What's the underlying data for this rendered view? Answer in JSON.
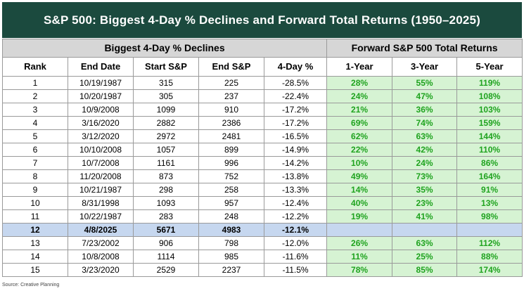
{
  "title": "S&P 500: Biggest 4-Day % Declines and Forward Total Returns (1950–2025)",
  "group_headers": {
    "declines": "Biggest 4-Day % Declines",
    "forward": "Forward S&P 500 Total Returns"
  },
  "columns": [
    "Rank",
    "End Date",
    "Start S&P",
    "End S&P",
    "4-Day %",
    "1-Year",
    "3-Year",
    "5-Year"
  ],
  "rows": [
    {
      "rank": "1",
      "end_date": "10/19/1987",
      "start": "315",
      "end": "225",
      "pct": "-28.5%",
      "y1": "28%",
      "y3": "55%",
      "y5": "119%"
    },
    {
      "rank": "2",
      "end_date": "10/20/1987",
      "start": "305",
      "end": "237",
      "pct": "-22.4%",
      "y1": "24%",
      "y3": "47%",
      "y5": "108%"
    },
    {
      "rank": "3",
      "end_date": "10/9/2008",
      "start": "1099",
      "end": "910",
      "pct": "-17.2%",
      "y1": "21%",
      "y3": "36%",
      "y5": "103%"
    },
    {
      "rank": "4",
      "end_date": "3/16/2020",
      "start": "2882",
      "end": "2386",
      "pct": "-17.2%",
      "y1": "69%",
      "y3": "74%",
      "y5": "159%"
    },
    {
      "rank": "5",
      "end_date": "3/12/2020",
      "start": "2972",
      "end": "2481",
      "pct": "-16.5%",
      "y1": "62%",
      "y3": "63%",
      "y5": "144%"
    },
    {
      "rank": "6",
      "end_date": "10/10/2008",
      "start": "1057",
      "end": "899",
      "pct": "-14.9%",
      "y1": "22%",
      "y3": "42%",
      "y5": "110%"
    },
    {
      "rank": "7",
      "end_date": "10/7/2008",
      "start": "1161",
      "end": "996",
      "pct": "-14.2%",
      "y1": "10%",
      "y3": "24%",
      "y5": "86%"
    },
    {
      "rank": "8",
      "end_date": "11/20/2008",
      "start": "873",
      "end": "752",
      "pct": "-13.8%",
      "y1": "49%",
      "y3": "73%",
      "y5": "164%"
    },
    {
      "rank": "9",
      "end_date": "10/21/1987",
      "start": "298",
      "end": "258",
      "pct": "-13.3%",
      "y1": "14%",
      "y3": "35%",
      "y5": "91%"
    },
    {
      "rank": "10",
      "end_date": "8/31/1998",
      "start": "1093",
      "end": "957",
      "pct": "-12.4%",
      "y1": "40%",
      "y3": "23%",
      "y5": "13%"
    },
    {
      "rank": "11",
      "end_date": "10/22/1987",
      "start": "283",
      "end": "248",
      "pct": "-12.2%",
      "y1": "19%",
      "y3": "41%",
      "y5": "98%"
    },
    {
      "rank": "12",
      "end_date": "4/8/2025",
      "start": "5671",
      "end": "4983",
      "pct": "-12.1%",
      "y1": "",
      "y3": "",
      "y5": "",
      "highlight": true
    },
    {
      "rank": "13",
      "end_date": "7/23/2002",
      "start": "906",
      "end": "798",
      "pct": "-12.0%",
      "y1": "26%",
      "y3": "63%",
      "y5": "112%"
    },
    {
      "rank": "14",
      "end_date": "10/8/2008",
      "start": "1114",
      "end": "985",
      "pct": "-11.6%",
      "y1": "11%",
      "y3": "25%",
      "y5": "88%"
    },
    {
      "rank": "15",
      "end_date": "3/23/2020",
      "start": "2529",
      "end": "2237",
      "pct": "-11.5%",
      "y1": "78%",
      "y3": "85%",
      "y5": "174%"
    }
  ],
  "source": "Source: Creative Planning",
  "colors": {
    "title_bg": "#1b4a3e",
    "header_bg": "#d6d6d6",
    "highlight_bg": "#c6d7ef",
    "return_bg": "#d6f3d3",
    "return_text": "#1fa31f"
  }
}
